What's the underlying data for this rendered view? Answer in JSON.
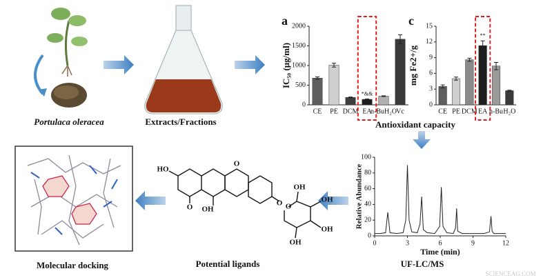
{
  "labels": {
    "plant": "Portulaca oleracea",
    "extracts": "Extracts/Fractions",
    "antioxidant": "Antioxidant capacity",
    "uflcms": "UF-LC/MS",
    "ligands": "Potential ligands",
    "docking": "Molecular docking",
    "watermark": "SCIENCEAG.COM"
  },
  "molecule": {
    "atoms": [
      "HO",
      "O",
      "OH",
      "O",
      "O",
      "O",
      "OH",
      "OH",
      "OH",
      "OH"
    ]
  },
  "chart_data": [
    {
      "type": "bar",
      "label": "a",
      "ylabel": "IC₅₀ (μg/ml)",
      "categories": [
        "CE",
        "PE",
        "DCM",
        "EA",
        "n-BuH₂O",
        "Vc"
      ],
      "values": [
        680,
        1010,
        190,
        140,
        220,
        1670
      ],
      "errors": [
        30,
        50,
        10,
        10,
        10,
        110
      ],
      "annotations": [
        null,
        null,
        null,
        "*&&",
        null,
        null
      ],
      "colors": [
        "#5e5e5e",
        "#cfcfcf",
        "#3e3e3e",
        "#1e1e1e",
        "#b0b0b0",
        "#3a3a3a"
      ],
      "ylim": [
        0,
        2000
      ],
      "yticks": [
        0,
        500,
        1000,
        1500,
        2000
      ]
    },
    {
      "type": "bar",
      "label": "c",
      "ylabel": "mg Fe2+/g",
      "categories": [
        "CE",
        "PE",
        "DCM",
        "EA",
        "n-Bu",
        "H₂O"
      ],
      "values": [
        3.5,
        5.0,
        8.6,
        11.3,
        7.4,
        2.7
      ],
      "errors": [
        0.3,
        0.3,
        0.3,
        0.9,
        0.7,
        0.1
      ],
      "annotations": [
        null,
        null,
        null,
        "**",
        null,
        null
      ],
      "colors": [
        "#5e5e5e",
        "#cfcfcf",
        "#8a8a8a",
        "#1e1e1e",
        "#9a9a9a",
        "#3a3a3a"
      ],
      "ylim": [
        0,
        15
      ],
      "yticks": [
        0,
        3,
        6,
        9,
        12,
        15
      ]
    },
    {
      "type": "line",
      "xlabel": "Time (min)",
      "ylabel": "Relative Abundance",
      "color": "#222222",
      "x": [
        0,
        0.5,
        1.0,
        1.2,
        1.4,
        2.0,
        2.6,
        2.85,
        3.0,
        3.15,
        3.4,
        3.9,
        4.15,
        4.3,
        4.45,
        4.8,
        5.5,
        5.95,
        6.1,
        6.25,
        6.6,
        7.2,
        7.4,
        7.5,
        7.6,
        8.0,
        9.0,
        10.0,
        10.5,
        10.65,
        10.75,
        10.9,
        11.5,
        12
      ],
      "values": [
        3,
        3,
        4,
        30,
        4,
        3,
        4,
        20,
        90,
        20,
        5,
        4,
        15,
        50,
        8,
        4,
        3,
        12,
        62,
        12,
        4,
        3,
        10,
        35,
        6,
        3,
        3,
        3,
        5,
        25,
        6,
        3,
        3,
        3
      ],
      "xlim": [
        0,
        12
      ],
      "xticks": [
        0,
        3,
        6,
        9,
        12
      ],
      "ylim": [
        0,
        100
      ],
      "yticks": [
        0,
        20,
        40,
        60,
        80,
        100
      ]
    }
  ]
}
